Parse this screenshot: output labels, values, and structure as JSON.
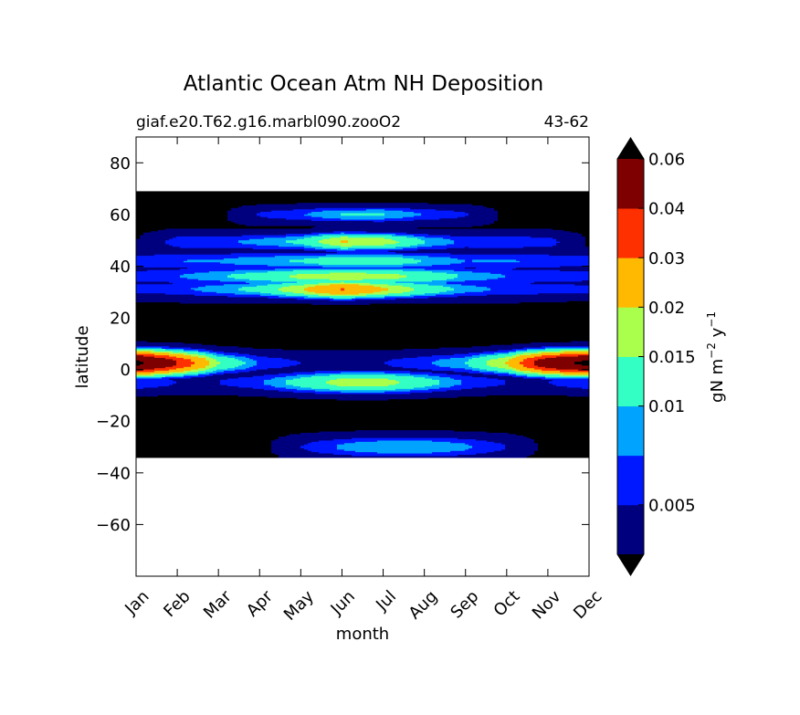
{
  "chart_data": {
    "type": "heatmap",
    "title": "Atlantic Ocean Atm NH Deposition",
    "subtitle_left": "giaf.e20.T62.g16.marbl090.zooO2",
    "subtitle_right": "43-62",
    "xlabel": "month",
    "ylabel": "latitude",
    "x_categories": [
      "Jan",
      "Feb",
      "Mar",
      "Apr",
      "May",
      "Jun",
      "Jul",
      "Aug",
      "Sep",
      "Oct",
      "Nov",
      "Dec"
    ],
    "xlim": [
      0,
      11
    ],
    "ylim": [
      -80,
      90
    ],
    "y_ticks": [
      80,
      60,
      40,
      20,
      0,
      -20,
      -40,
      -60
    ],
    "y_tick_labels": [
      "80",
      "60",
      "40",
      "20",
      "0",
      "−20",
      "−40",
      "−60"
    ],
    "data_lat_range": [
      -34,
      69
    ],
    "colorbar": {
      "label_main": "gN m",
      "label_exp1": "−2",
      "label_mid": " y",
      "label_exp2": "−1",
      "extend": "both",
      "levels": [
        0.00125,
        0.005,
        0.0075,
        0.01,
        0.015,
        0.02,
        0.03,
        0.04,
        0.06,
        0.07
      ],
      "tick_labels": [
        {
          "value": 0.005,
          "label": "0.005"
        },
        {
          "value": 0.01,
          "label": "0.01"
        },
        {
          "value": 0.015,
          "label": "0.015"
        },
        {
          "value": 0.02,
          "label": "0.02"
        },
        {
          "value": 0.03,
          "label": "0.03"
        },
        {
          "value": 0.04,
          "label": "0.04"
        },
        {
          "value": 0.06,
          "label": "0.06"
        }
      ],
      "colors": [
        "#00007f",
        "#0018ff",
        "#00a4ff",
        "#33ffc4",
        "#aaff4d",
        "#ffb900",
        "#ff3000",
        "#7f0000"
      ],
      "under_color": "#000000",
      "over_color": "#000000"
    },
    "grid": false,
    "bands": [
      {
        "lat": 60.0,
        "values": [
          0,
          0,
          0,
          0.005,
          0.007,
          0.01,
          0.01,
          0.007,
          0.005,
          0,
          0,
          0
        ]
      },
      {
        "lat": 49.5,
        "values": [
          0,
          0.005,
          0.005,
          0.007,
          0.01,
          0.02,
          0.017,
          0.009,
          0.005,
          0.005,
          0.005,
          0
        ]
      },
      {
        "lat": 42.0,
        "values": [
          0.005,
          0.005,
          0.005,
          0.007,
          0.009,
          0.012,
          0.012,
          0.008,
          0.005,
          0.005,
          0.005,
          0.005
        ]
      },
      {
        "lat": 36.0,
        "values": [
          0.005,
          0.005,
          0.007,
          0.01,
          0.015,
          0.017,
          0.016,
          0.012,
          0.007,
          0.005,
          0.005,
          0.005
        ]
      },
      {
        "lat": 31.0,
        "values": [
          0.005,
          0.005,
          0.007,
          0.01,
          0.018,
          0.03,
          0.02,
          0.012,
          0.007,
          0.005,
          0.005,
          0.005
        ]
      },
      {
        "lat": 2.5,
        "values": [
          0.065,
          0.04,
          0.015,
          0.007,
          0.005,
          0.005,
          0.005,
          0.007,
          0.01,
          0.02,
          0.05,
          0.065
        ]
      },
      {
        "lat": -5.0,
        "values": [
          0.007,
          0.005,
          0.005,
          0.007,
          0.012,
          0.017,
          0.017,
          0.012,
          0.007,
          0.005,
          0.005,
          0.007
        ]
      },
      {
        "lat": -30.0,
        "values": [
          0,
          0,
          0,
          0,
          0.005,
          0.008,
          0.01,
          0.01,
          0.008,
          0.005,
          0,
          0
        ]
      }
    ]
  }
}
